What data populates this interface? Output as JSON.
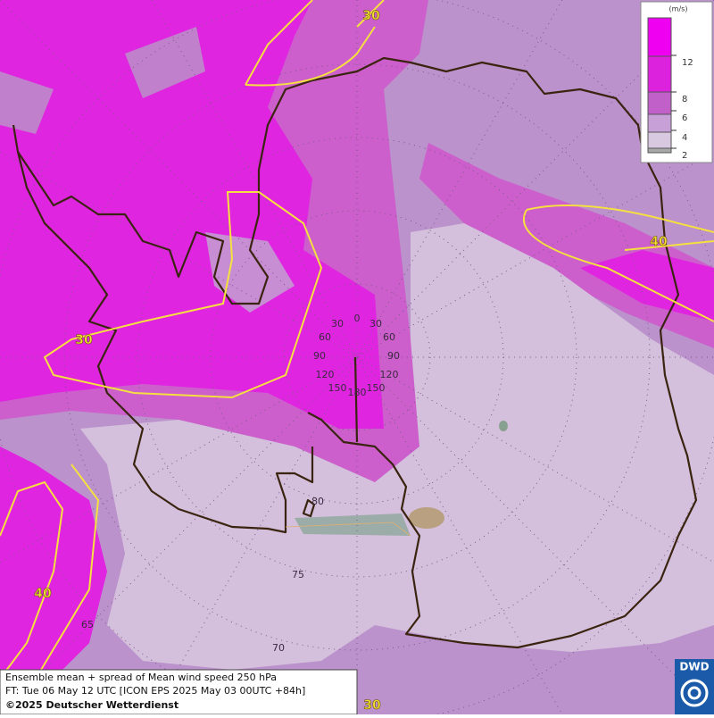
{
  "legend": {
    "unit": "(m/s)",
    "ticks": [
      12,
      8,
      6,
      4,
      2
    ]
  },
  "contour_labels": [
    30,
    40,
    30,
    40,
    30
  ],
  "longitude_labels": [
    0,
    30,
    60,
    90,
    120,
    150,
    30,
    60,
    90,
    120,
    150,
    180
  ],
  "latitude_labels": [
    80,
    75,
    70,
    65
  ],
  "footer": {
    "line1": "Ensemble mean + spread of Mean wind speed 250 hPa",
    "line2": "FT: Tue 06 May 12 UTC [ICON EPS 2025 May 03 00UTC +84h]",
    "line3": "©2025 Deutscher Wetterdienst"
  },
  "logo": "DWD"
}
